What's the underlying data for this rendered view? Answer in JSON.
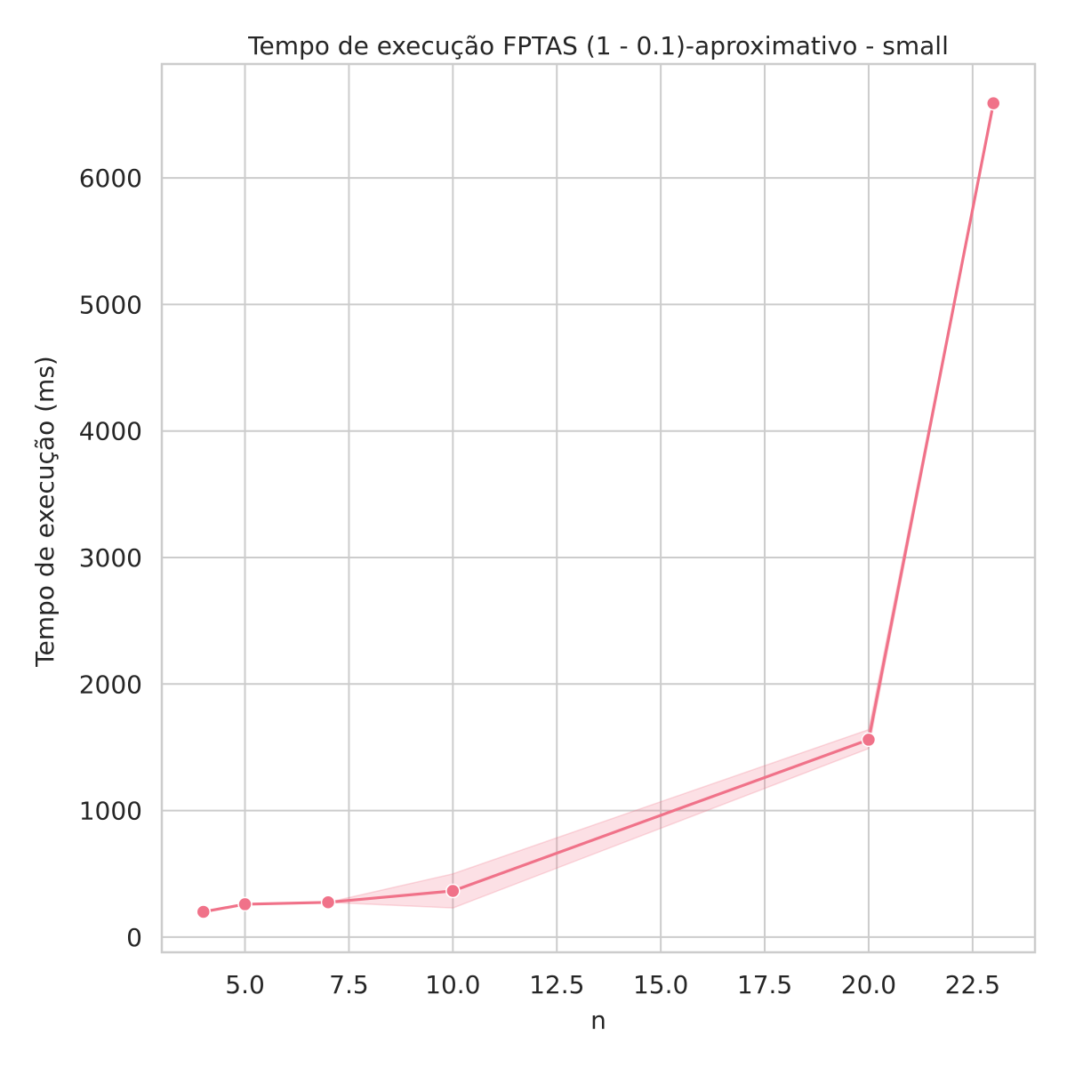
{
  "chart_data": {
    "type": "line",
    "title": "Tempo de execução FPTAS (1 - 0.1)-aproximativo - small",
    "xlabel": "n",
    "ylabel": "Tempo de execução (ms)",
    "xlim": [
      3.0,
      24.0
    ],
    "ylim": [
      -120,
      6900
    ],
    "xticks": [
      5.0,
      7.5,
      10.0,
      12.5,
      15.0,
      17.5,
      20.0,
      22.5
    ],
    "xtick_labels": [
      "5.0",
      "7.5",
      "10.0",
      "12.5",
      "15.0",
      "17.5",
      "20.0",
      "22.5"
    ],
    "yticks": [
      0,
      1000,
      2000,
      3000,
      4000,
      5000,
      6000
    ],
    "ytick_labels": [
      "0",
      "1000",
      "2000",
      "3000",
      "4000",
      "5000",
      "6000"
    ],
    "grid": true,
    "series": [
      {
        "x": [
          4,
          5,
          7,
          10,
          20,
          23
        ],
        "y": [
          200,
          260,
          275,
          365,
          1560,
          6590
        ],
        "ci_lower": [
          200,
          260,
          275,
          230,
          1490,
          6590
        ],
        "ci_upper": [
          200,
          260,
          275,
          500,
          1640,
          6590
        ],
        "color": "#f07289"
      }
    ]
  },
  "colors": {
    "grid": "#cccccc",
    "spine": "#cccccc",
    "text": "#262626",
    "series": "#f07289",
    "band": "#f07289"
  }
}
